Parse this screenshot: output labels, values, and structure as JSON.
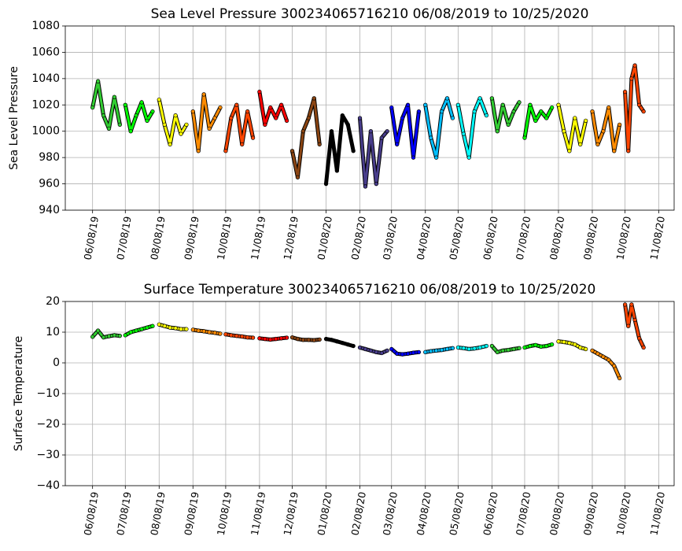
{
  "chart_data": [
    {
      "type": "line",
      "title": "Sea Level Pressure 300234065716210  06/08/2019 to 10/25/2020",
      "y_label": "Sea Level Pressure",
      "xlim": [
        "05/14/19",
        "11/22/20"
      ],
      "ylim": [
        940,
        1080
      ],
      "yticks": [
        940,
        960,
        980,
        1000,
        1020,
        1040,
        1060,
        1080
      ],
      "xticks": [
        "06/08/19",
        "07/08/19",
        "08/08/19",
        "09/08/19",
        "10/08/19",
        "11/08/19",
        "12/08/19",
        "01/08/20",
        "02/08/20",
        "03/08/20",
        "04/08/20",
        "05/08/20",
        "06/08/20",
        "07/08/20",
        "08/08/20",
        "09/08/20",
        "10/08/20",
        "11/08/20"
      ],
      "grid": true,
      "series": [
        {
          "color": "#32cd32",
          "x": [
            "06/08/19",
            "06/13/19",
            "06/18/19",
            "06/23/19",
            "06/28/19",
            "07/03/19"
          ],
          "values": [
            1018,
            1038,
            1012,
            1002,
            1026,
            1005
          ]
        },
        {
          "color": "#00ff00",
          "x": [
            "07/08/19",
            "07/13/19",
            "07/18/19",
            "07/23/19",
            "07/28/19",
            "08/02/19"
          ],
          "values": [
            1020,
            1000,
            1012,
            1022,
            1008,
            1015
          ]
        },
        {
          "color": "#ffff00",
          "x": [
            "08/08/19",
            "08/13/19",
            "08/18/19",
            "08/23/19",
            "08/28/19",
            "09/02/19"
          ],
          "values": [
            1024,
            1005,
            990,
            1012,
            998,
            1005
          ]
        },
        {
          "color": "#ff8c00",
          "x": [
            "09/08/19",
            "09/13/19",
            "09/18/19",
            "09/23/19",
            "09/28/19",
            "10/03/19"
          ],
          "values": [
            1015,
            985,
            1028,
            1002,
            1010,
            1018
          ]
        },
        {
          "color": "#ff4500",
          "x": [
            "10/08/19",
            "10/13/19",
            "10/18/19",
            "10/23/19",
            "10/28/19",
            "11/02/19"
          ],
          "values": [
            985,
            1010,
            1020,
            990,
            1015,
            995
          ]
        },
        {
          "color": "#ff0000",
          "x": [
            "11/08/19",
            "11/13/19",
            "11/18/19",
            "11/23/19",
            "11/28/19",
            "12/03/19"
          ],
          "values": [
            1030,
            1005,
            1018,
            1010,
            1020,
            1008
          ]
        },
        {
          "color": "#8b4513",
          "x": [
            "12/08/19",
            "12/13/19",
            "12/18/19",
            "12/23/19",
            "12/28/19",
            "01/02/20"
          ],
          "values": [
            985,
            965,
            1000,
            1010,
            1025,
            990
          ]
        },
        {
          "color": "#000000",
          "x": [
            "01/08/20",
            "01/13/20",
            "01/18/20",
            "01/23/20",
            "01/28/20",
            "02/02/20"
          ],
          "values": [
            960,
            1000,
            970,
            1012,
            1005,
            985
          ]
        },
        {
          "color": "#483d8b",
          "x": [
            "02/08/20",
            "02/13/20",
            "02/18/20",
            "02/23/20",
            "02/28/20",
            "03/04/20"
          ],
          "values": [
            1010,
            958,
            1000,
            960,
            995,
            1000
          ]
        },
        {
          "color": "#0000ff",
          "x": [
            "03/08/20",
            "03/13/20",
            "03/18/20",
            "03/23/20",
            "03/28/20",
            "04/02/20"
          ],
          "values": [
            1018,
            990,
            1010,
            1020,
            980,
            1015
          ]
        },
        {
          "color": "#00bfff",
          "x": [
            "04/08/20",
            "04/13/20",
            "04/18/20",
            "04/23/20",
            "04/28/20",
            "05/03/20"
          ],
          "values": [
            1020,
            995,
            980,
            1015,
            1025,
            1010
          ]
        },
        {
          "color": "#00ffff",
          "x": [
            "05/08/20",
            "05/13/20",
            "05/18/20",
            "05/23/20",
            "05/28/20",
            "06/03/20"
          ],
          "values": [
            1020,
            998,
            980,
            1015,
            1025,
            1012
          ]
        },
        {
          "color": "#32cd32",
          "x": [
            "06/08/20",
            "06/13/20",
            "06/18/20",
            "06/23/20",
            "06/28/20",
            "07/03/20"
          ],
          "values": [
            1025,
            1000,
            1020,
            1005,
            1015,
            1022
          ]
        },
        {
          "color": "#00ff00",
          "x": [
            "07/08/20",
            "07/13/20",
            "07/18/20",
            "07/23/20",
            "07/28/20",
            "08/02/20"
          ],
          "values": [
            995,
            1020,
            1008,
            1015,
            1010,
            1018
          ]
        },
        {
          "color": "#ffff00",
          "x": [
            "08/08/20",
            "08/13/20",
            "08/18/20",
            "08/23/20",
            "08/28/20",
            "09/02/20"
          ],
          "values": [
            1020,
            1000,
            985,
            1010,
            990,
            1008
          ]
        },
        {
          "color": "#ff8c00",
          "x": [
            "09/08/20",
            "09/13/20",
            "09/18/20",
            "09/23/20",
            "09/28/20",
            "10/03/20"
          ],
          "values": [
            1015,
            990,
            1000,
            1018,
            985,
            1005
          ]
        },
        {
          "color": "#ff4500",
          "x": [
            "10/08/20",
            "10/11/20",
            "10/14/20",
            "10/17/20",
            "10/21/20",
            "10/25/20"
          ],
          "values": [
            1030,
            985,
            1040,
            1050,
            1020,
            1015
          ]
        }
      ]
    },
    {
      "type": "line",
      "title": "Surface Temperature 300234065716210  06/08/2019 to 10/25/2020",
      "y_label": "Surface Temperature",
      "xlim": [
        "05/14/19",
        "11/22/20"
      ],
      "ylim": [
        -40,
        20
      ],
      "yticks": [
        {
          "value": -40,
          "label": "−40"
        },
        {
          "value": -30,
          "label": "−30"
        },
        {
          "value": -20,
          "label": "−20"
        },
        {
          "value": -10,
          "label": "−10"
        },
        0,
        10,
        20
      ],
      "xticks": [
        "06/08/19",
        "07/08/19",
        "08/08/19",
        "09/08/19",
        "10/08/19",
        "11/08/19",
        "12/08/19",
        "01/08/20",
        "02/08/20",
        "03/08/20",
        "04/08/20",
        "05/08/20",
        "06/08/20",
        "07/08/20",
        "08/08/20",
        "09/08/20",
        "10/08/20",
        "11/08/20"
      ],
      "grid": true,
      "series": [
        {
          "color": "#32cd32",
          "x": [
            "06/08/19",
            "06/13/19",
            "06/18/19",
            "06/23/19",
            "06/28/19",
            "07/03/19"
          ],
          "values": [
            8.5,
            10.5,
            8.3,
            8.7,
            9,
            8.8
          ]
        },
        {
          "color": "#00ff00",
          "x": [
            "07/08/19",
            "07/13/19",
            "07/18/19",
            "07/23/19",
            "07/28/19",
            "08/02/19"
          ],
          "values": [
            9,
            10,
            10.5,
            11,
            11.5,
            12
          ]
        },
        {
          "color": "#ffff00",
          "x": [
            "08/08/19",
            "08/13/19",
            "08/18/19",
            "08/23/19",
            "08/28/19",
            "09/02/19"
          ],
          "values": [
            12.5,
            12,
            11.5,
            11.3,
            11,
            11
          ]
        },
        {
          "color": "#ff8c00",
          "x": [
            "09/08/19",
            "09/13/19",
            "09/18/19",
            "09/23/19",
            "09/28/19",
            "10/03/19"
          ],
          "values": [
            10.8,
            10.5,
            10.3,
            10,
            9.8,
            9.5
          ]
        },
        {
          "color": "#ff4500",
          "x": [
            "10/08/19",
            "10/13/19",
            "10/18/19",
            "10/23/19",
            "10/28/19",
            "11/02/19"
          ],
          "values": [
            9.3,
            9,
            8.8,
            8.6,
            8.3,
            8.2
          ]
        },
        {
          "color": "#ff0000",
          "x": [
            "11/08/19",
            "11/13/19",
            "11/18/19",
            "11/23/19",
            "11/28/19",
            "12/03/19"
          ],
          "values": [
            8,
            7.8,
            7.6,
            7.8,
            8,
            8.2
          ]
        },
        {
          "color": "#8b4513",
          "x": [
            "12/08/19",
            "12/13/19",
            "12/18/19",
            "12/23/19",
            "12/28/19",
            "01/02/20"
          ],
          "values": [
            8.3,
            7.8,
            7.5,
            7.5,
            7.4,
            7.6
          ]
        },
        {
          "color": "#000000",
          "x": [
            "01/08/20",
            "01/13/20",
            "01/18/20",
            "01/23/20",
            "01/28/20",
            "02/02/20"
          ],
          "values": [
            7.8,
            7.5,
            7,
            6.5,
            6,
            5.5
          ]
        },
        {
          "color": "#483d8b",
          "x": [
            "02/08/20",
            "02/13/20",
            "02/18/20",
            "02/23/20",
            "02/28/20",
            "03/04/20"
          ],
          "values": [
            5,
            4.5,
            4,
            3.5,
            3.2,
            4
          ]
        },
        {
          "color": "#0000ff",
          "x": [
            "03/08/20",
            "03/13/20",
            "03/18/20",
            "03/23/20",
            "03/28/20",
            "04/02/20"
          ],
          "values": [
            4.5,
            3,
            2.8,
            3,
            3.3,
            3.5
          ]
        },
        {
          "color": "#00bfff",
          "x": [
            "04/08/20",
            "04/13/20",
            "04/18/20",
            "04/23/20",
            "04/28/20",
            "05/03/20"
          ],
          "values": [
            3.5,
            3.8,
            4,
            4.2,
            4.5,
            4.8
          ]
        },
        {
          "color": "#00ffff",
          "x": [
            "05/08/20",
            "05/13/20",
            "05/18/20",
            "05/23/20",
            "05/28/20",
            "06/03/20"
          ],
          "values": [
            5,
            4.8,
            4.5,
            4.7,
            5,
            5.5
          ]
        },
        {
          "color": "#32cd32",
          "x": [
            "06/08/20",
            "06/13/20",
            "06/18/20",
            "06/23/20",
            "06/28/20",
            "07/03/20"
          ],
          "values": [
            5.5,
            3.5,
            4,
            4.2,
            4.5,
            4.8
          ]
        },
        {
          "color": "#00ff00",
          "x": [
            "07/08/20",
            "07/13/20",
            "07/18/20",
            "07/23/20",
            "07/28/20",
            "08/02/20"
          ],
          "values": [
            5,
            5.5,
            5.8,
            5.3,
            5.5,
            6
          ]
        },
        {
          "color": "#ffff00",
          "x": [
            "08/08/20",
            "08/13/20",
            "08/18/20",
            "08/23/20",
            "08/28/20",
            "09/02/20"
          ],
          "values": [
            7,
            6.8,
            6.5,
            6,
            5,
            4.5
          ]
        },
        {
          "color": "#ff8c00",
          "x": [
            "09/08/20",
            "09/13/20",
            "09/18/20",
            "09/23/20",
            "09/28/20",
            "10/03/20"
          ],
          "values": [
            4,
            3,
            2,
            1,
            -1,
            -5
          ]
        },
        {
          "color": "#ff4500",
          "x": [
            "10/08/20",
            "10/11/20",
            "10/14/20",
            "10/17/20",
            "10/21/20",
            "10/25/20"
          ],
          "values": [
            19,
            12,
            19,
            14,
            8,
            5
          ]
        }
      ]
    }
  ]
}
